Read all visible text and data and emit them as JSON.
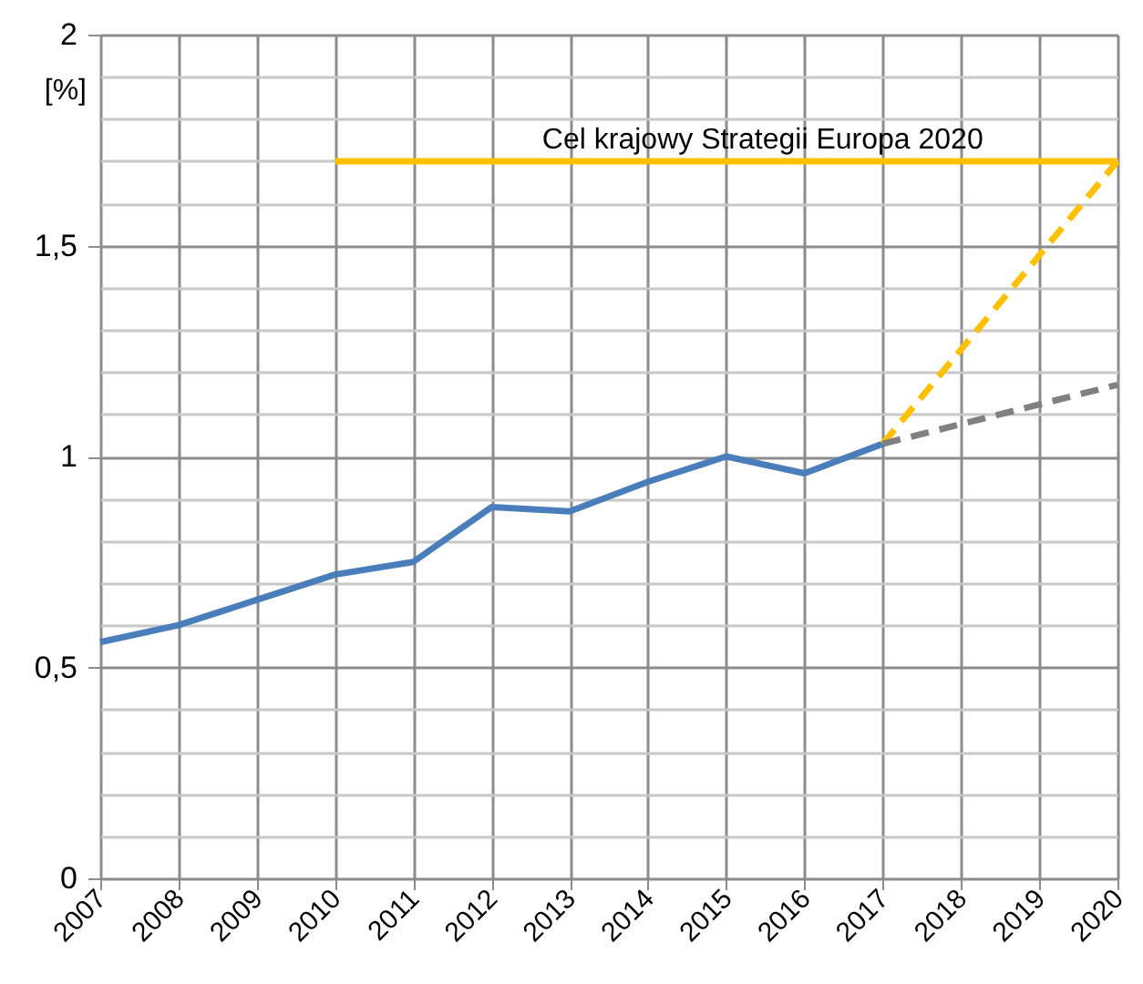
{
  "chart_data": {
    "type": "line",
    "ylabel": "[%]",
    "xlim": [
      2007,
      2020
    ],
    "xticks": [
      2007,
      2008,
      2009,
      2010,
      2011,
      2012,
      2013,
      2014,
      2015,
      2016,
      2017,
      2018,
      2019,
      2020
    ],
    "ylim": [
      0,
      2
    ],
    "yticks": [
      {
        "value": 0,
        "label": "0"
      },
      {
        "value": 0.1,
        "label": null
      },
      {
        "value": 0.2,
        "label": null
      },
      {
        "value": 0.3,
        "label": null
      },
      {
        "value": 0.4,
        "label": null
      },
      {
        "value": 0.5,
        "label": "0,5"
      },
      {
        "value": 0.6,
        "label": null
      },
      {
        "value": 0.7,
        "label": null
      },
      {
        "value": 0.8,
        "label": null
      },
      {
        "value": 0.9,
        "label": null
      },
      {
        "value": 1,
        "label": "1"
      },
      {
        "value": 1.1,
        "label": null
      },
      {
        "value": 1.2,
        "label": null
      },
      {
        "value": 1.3,
        "label": null
      },
      {
        "value": 1.4,
        "label": null
      },
      {
        "value": 1.5,
        "label": "1,5"
      },
      {
        "value": 1.6,
        "label": null
      },
      {
        "value": 1.7,
        "label": null
      },
      {
        "value": 1.8,
        "label": null
      },
      {
        "value": 1.9,
        "label": null
      },
      {
        "value": 2,
        "label": "2"
      }
    ],
    "grid": true,
    "marker": "none",
    "series": [
      {
        "color": "#4a7ebb",
        "line_style": "solid",
        "x": [
          2007,
          2008,
          2009,
          2010,
          2011,
          2012,
          2013,
          2014,
          2015,
          2016,
          2017
        ],
        "values": [
          0.56,
          0.6,
          0.66,
          0.72,
          0.75,
          0.88,
          0.87,
          0.94,
          1.0,
          0.96,
          1.03
        ]
      },
      {
        "color": "#ffc000",
        "line_style": "dashed",
        "x": [
          2017,
          2020
        ],
        "values": [
          1.03,
          1.7
        ]
      },
      {
        "color": "#808080",
        "line_style": "dashed",
        "x": [
          2017,
          2020
        ],
        "values": [
          1.03,
          1.17
        ]
      },
      {
        "name": "Cel krajowy Strategii Europa 2020",
        "color": "#ffc000",
        "line_style": "solid",
        "x": [
          2010,
          2020
        ],
        "values": [
          1.7,
          1.7
        ]
      }
    ]
  }
}
